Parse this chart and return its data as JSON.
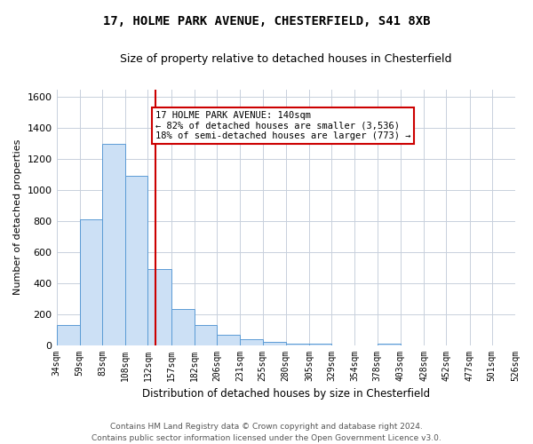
{
  "title": "17, HOLME PARK AVENUE, CHESTERFIELD, S41 8XB",
  "subtitle": "Size of property relative to detached houses in Chesterfield",
  "xlabel": "Distribution of detached houses by size in Chesterfield",
  "ylabel": "Number of detached properties",
  "footer1": "Contains HM Land Registry data © Crown copyright and database right 2024.",
  "footer2": "Contains public sector information licensed under the Open Government Licence v3.0.",
  "bins": [
    34,
    59,
    83,
    108,
    132,
    157,
    182,
    206,
    231,
    255,
    280,
    305,
    329,
    354,
    378,
    403,
    428,
    452,
    477,
    501,
    526
  ],
  "values": [
    130,
    810,
    1300,
    1090,
    490,
    230,
    130,
    65,
    35,
    20,
    10,
    10,
    0,
    0,
    10,
    0,
    0,
    0,
    0,
    0
  ],
  "bar_color": "#cce0f5",
  "bar_edge_color": "#5b9bd5",
  "vline_x": 140,
  "vline_color": "#cc0000",
  "annotation_title": "17 HOLME PARK AVENUE: 140sqm",
  "annotation_line1": "← 82% of detached houses are smaller (3,536)",
  "annotation_line2": "18% of semi-detached houses are larger (773) →",
  "ylim": [
    0,
    1650
  ],
  "yticks": [
    0,
    200,
    400,
    600,
    800,
    1000,
    1200,
    1400,
    1600
  ],
  "background_color": "#ffffff",
  "grid_color": "#c8d0dc"
}
